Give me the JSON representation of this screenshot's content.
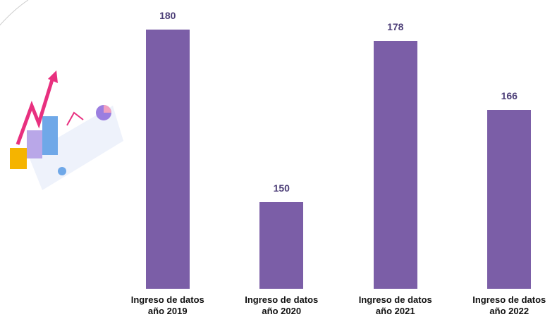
{
  "chart_data": {
    "type": "bar",
    "categories": [
      "Ingreso de datos año 2019",
      "Ingreso de datos año 2020",
      "Ingreso de datos año 2021",
      "Ingreso de datos año 2022"
    ],
    "values": [
      180,
      150,
      178,
      166
    ],
    "color": "#7b5ea7",
    "ylim": [
      135,
      180
    ]
  }
}
